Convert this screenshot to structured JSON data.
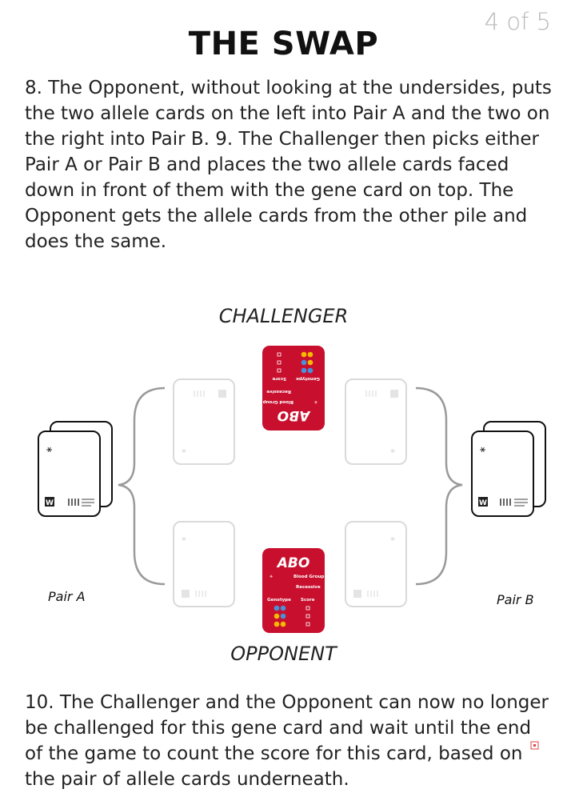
{
  "page_number": "4 of 5",
  "title": "THE SWAP",
  "step_8_9": "8. The Opponent, without looking at the undersides, puts the two allele cards on the left into Pair A and the two on the right into Pair B. 9. The Challenger then picks either Pair A or Pair B and places the two allele cards faced down in front of them with the gene card on top. The Opponent gets the allele cards from the other pile and does the same.",
  "step_10": "10. The Challenger and the Opponent can now no longer be challenged for this gene card and wait until the end of the game to count the score for this card, based on the pair of allele cards underneath.",
  "diagram": {
    "challenger_label": "CHALLENGER",
    "opponent_label": "OPPONENT",
    "pair_a_label": "Pair A",
    "pair_b_label": "Pair B",
    "gene_card": {
      "name": "ABO",
      "trait": "Blood Group",
      "inheritance": "Recessive",
      "genotype_header": "Genotype",
      "score_header": "Score",
      "color": "#c8102e"
    },
    "allele_card_logo": "W",
    "icons": [
      "dna-icon",
      "people-icon"
    ]
  }
}
